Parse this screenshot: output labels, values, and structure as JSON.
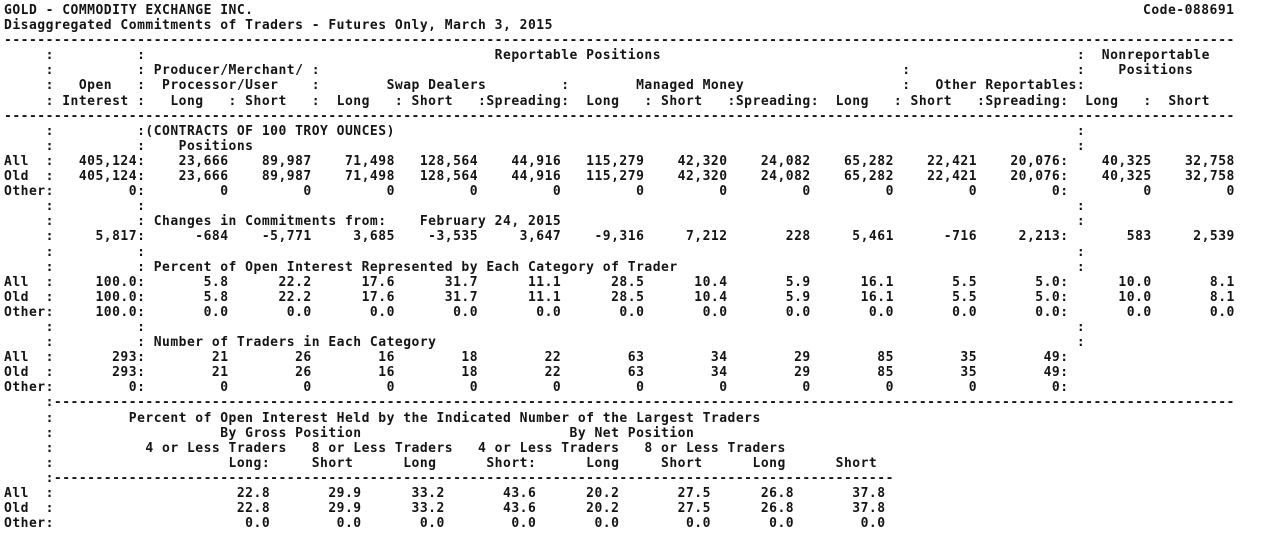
{
  "header": {
    "title": "GOLD - COMMODITY EXCHANGE INC.",
    "code": "Code-088691",
    "subtitle": "Disaggregated Commitments of Traders - Futures Only, March 3, 2015"
  },
  "columns": {
    "reportable": "Reportable Positions",
    "nonreportable_line1": "Nonreportable",
    "nonreportable_line2": "Positions",
    "open_line1": "Open",
    "open_line2": "Interest",
    "producer_line1": "Producer/Merchant/",
    "producer_line2": "Processor/User",
    "swap": "Swap Dealers",
    "managed": "Managed Money",
    "other": "Other Reportables",
    "long": "Long",
    "short": "Short",
    "spreading": "Spreading"
  },
  "unit_note": "(CONTRACTS OF 100 TROY OUNCES)",
  "sections": {
    "positions": {
      "title": "Positions",
      "rows": [
        {
          "label": "All",
          "open_interest": "405,124",
          "values": [
            "23,666",
            "89,987",
            "71,498",
            "128,564",
            "44,916",
            "115,279",
            "42,320",
            "24,082",
            "65,282",
            "22,421",
            "20,076"
          ],
          "nonreportable": [
            "40,325",
            "32,758"
          ]
        },
        {
          "label": "Old",
          "open_interest": "405,124",
          "values": [
            "23,666",
            "89,987",
            "71,498",
            "128,564",
            "44,916",
            "115,279",
            "42,320",
            "24,082",
            "65,282",
            "22,421",
            "20,076"
          ],
          "nonreportable": [
            "40,325",
            "32,758"
          ]
        },
        {
          "label": "Other",
          "open_interest": "0",
          "values": [
            "0",
            "0",
            "0",
            "0",
            "0",
            "0",
            "0",
            "0",
            "0",
            "0",
            "0"
          ],
          "nonreportable": [
            "0",
            "0"
          ]
        }
      ]
    },
    "changes": {
      "title": "Changes in Commitments from:",
      "date": "February 24, 2015",
      "rows": [
        {
          "label": "",
          "open_interest": "5,817",
          "values": [
            "-684",
            "-5,771",
            "3,685",
            "-3,535",
            "3,647",
            "-9,316",
            "7,212",
            "228",
            "5,461",
            "-716",
            "2,213"
          ],
          "nonreportable": [
            "583",
            "2,539"
          ]
        }
      ]
    },
    "percent": {
      "title": "Percent of Open Interest Represented by Each Category of Trader",
      "rows": [
        {
          "label": "All",
          "open_interest": "100.0",
          "values": [
            "5.8",
            "22.2",
            "17.6",
            "31.7",
            "11.1",
            "28.5",
            "10.4",
            "5.9",
            "16.1",
            "5.5",
            "5.0"
          ],
          "nonreportable": [
            "10.0",
            "8.1"
          ]
        },
        {
          "label": "Old",
          "open_interest": "100.0",
          "values": [
            "5.8",
            "22.2",
            "17.6",
            "31.7",
            "11.1",
            "28.5",
            "10.4",
            "5.9",
            "16.1",
            "5.5",
            "5.0"
          ],
          "nonreportable": [
            "10.0",
            "8.1"
          ]
        },
        {
          "label": "Other",
          "open_interest": "100.0",
          "values": [
            "0.0",
            "0.0",
            "0.0",
            "0.0",
            "0.0",
            "0.0",
            "0.0",
            "0.0",
            "0.0",
            "0.0",
            "0.0"
          ],
          "nonreportable": [
            "0.0",
            "0.0"
          ]
        }
      ]
    },
    "traders": {
      "title": "Number of Traders in Each Category",
      "rows": [
        {
          "label": "All",
          "open_interest": "293",
          "values": [
            "21",
            "26",
            "16",
            "18",
            "22",
            "63",
            "34",
            "29",
            "85",
            "35",
            "49"
          ]
        },
        {
          "label": "Old",
          "open_interest": "293",
          "values": [
            "21",
            "26",
            "16",
            "18",
            "22",
            "63",
            "34",
            "29",
            "85",
            "35",
            "49"
          ]
        },
        {
          "label": "Other",
          "open_interest": "0",
          "values": [
            "0",
            "0",
            "0",
            "0",
            "0",
            "0",
            "0",
            "0",
            "0",
            "0",
            "0"
          ]
        }
      ]
    }
  },
  "concentration": {
    "title": "Percent of Open Interest Held by the Indicated Number of the Largest Traders",
    "groups": [
      "By Gross Position",
      "By Net Position"
    ],
    "subgroups": [
      "4 or Less Traders",
      "8 or Less Traders",
      "4 or Less Traders",
      "8 or Less Traders"
    ],
    "col_headers": [
      "Long",
      "Short",
      "Long",
      "Short",
      "Long",
      "Short",
      "Long",
      "Short"
    ],
    "rows": [
      {
        "label": "All",
        "values": [
          "22.8",
          "29.9",
          "33.2",
          "43.6",
          "20.2",
          "27.5",
          "26.8",
          "37.8"
        ]
      },
      {
        "label": "Old",
        "values": [
          "22.8",
          "29.9",
          "33.2",
          "43.6",
          "20.2",
          "27.5",
          "26.8",
          "37.8"
        ]
      },
      {
        "label": "Other",
        "values": [
          "0.0",
          "0.0",
          "0.0",
          "0.0",
          "0.0",
          "0.0",
          "0.0",
          "0.0"
        ]
      }
    ]
  }
}
